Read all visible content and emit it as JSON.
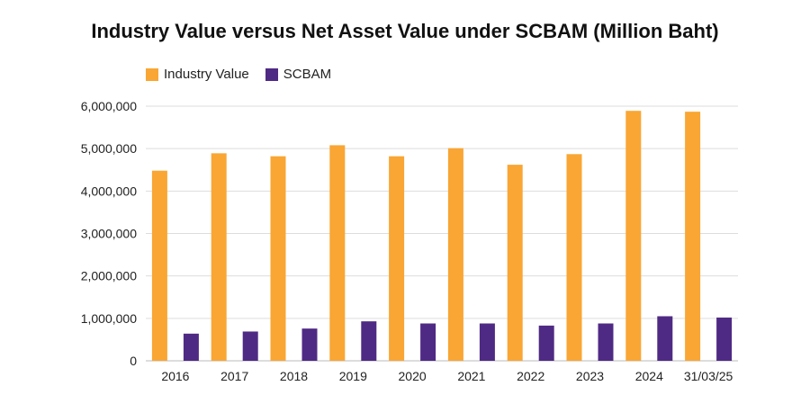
{
  "chart_data": {
    "type": "bar",
    "title": "Industry Value versus Net Asset Value under SCBAM (Million Baht)",
    "categories": [
      "2016",
      "2017",
      "2018",
      "2019",
      "2020",
      "2021",
      "2022",
      "2023",
      "2024",
      "31/03/25"
    ],
    "series": [
      {
        "name": "Industry Value",
        "color": "#F9A634",
        "values": [
          4480000,
          4890000,
          4820000,
          5080000,
          4820000,
          5010000,
          4620000,
          4870000,
          5890000,
          5870000
        ]
      },
      {
        "name": "SCBAM",
        "color": "#4F2A84",
        "values": [
          640000,
          690000,
          760000,
          930000,
          880000,
          880000,
          830000,
          880000,
          1050000,
          1020000
        ]
      }
    ],
    "ylim": [
      0,
      6000000
    ],
    "yticks": [
      "0",
      "1,000,000",
      "2,000,000",
      "3,000,000",
      "4,000,000",
      "5,000,000",
      "6,000,000"
    ],
    "grid": true,
    "legend_position": "top-left"
  }
}
